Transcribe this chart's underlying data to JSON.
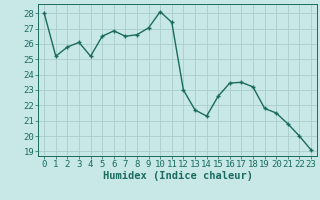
{
  "x": [
    0,
    1,
    2,
    3,
    4,
    5,
    6,
    7,
    8,
    9,
    10,
    11,
    12,
    13,
    14,
    15,
    16,
    17,
    18,
    19,
    20,
    21,
    22,
    23
  ],
  "y": [
    28,
    25.2,
    25.8,
    26.1,
    25.2,
    26.5,
    26.85,
    26.5,
    26.6,
    27.05,
    28.1,
    27.4,
    23.0,
    21.7,
    21.3,
    22.6,
    23.45,
    23.5,
    23.2,
    21.8,
    21.5,
    20.8,
    20.0,
    19.1
  ],
  "line_color": "#1a6b5e",
  "marker": "+",
  "bg_color": "#c8e8e8",
  "grid_color": "#aacccc",
  "xlabel": "Humidex (Indice chaleur)",
  "ylim": [
    18.7,
    28.6
  ],
  "xlim": [
    -0.5,
    23.5
  ],
  "yticks": [
    19,
    20,
    21,
    22,
    23,
    24,
    25,
    26,
    27,
    28
  ],
  "xticks": [
    0,
    1,
    2,
    3,
    4,
    5,
    6,
    7,
    8,
    9,
    10,
    11,
    12,
    13,
    14,
    15,
    16,
    17,
    18,
    19,
    20,
    21,
    22,
    23
  ],
  "tick_fontsize": 6.5,
  "xlabel_fontsize": 7.5,
  "linewidth": 1.0,
  "markersize": 3.5,
  "markeredgewidth": 1.0
}
